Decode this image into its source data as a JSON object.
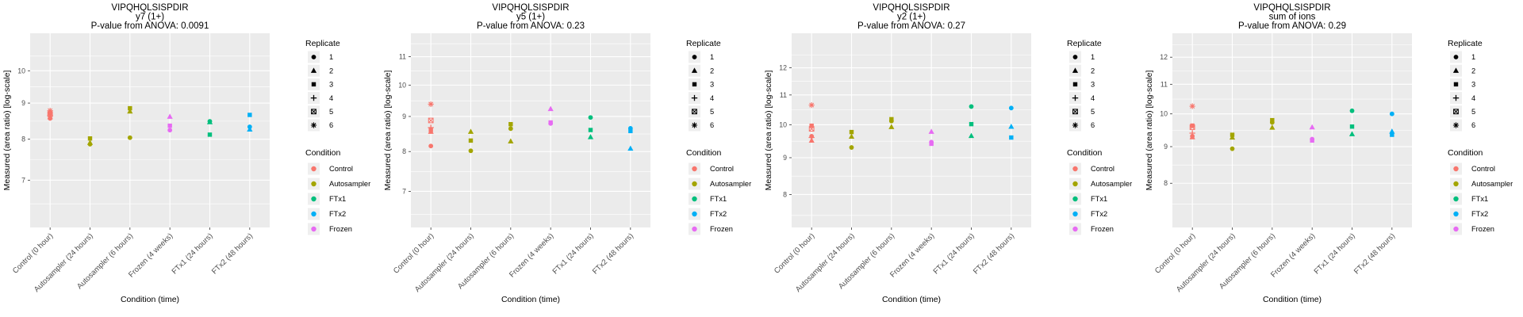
{
  "page": {
    "peptide": "VIPQHQLSISPDIR",
    "description": "Four faceted scatter plots of measured area ratio (log scale) by condition, one per ion fragment"
  },
  "colors": {
    "panel_background": "#EBEBEB",
    "gridline": "#FFFFFF",
    "tick_label": "#4D4D4D",
    "axis_text": "#000000",
    "legend_key_background": "#EFEFEF",
    "conditions": {
      "Control": "#F8766D",
      "Autosampler": "#A3A500",
      "FTx1": "#00BF7D",
      "FTx2": "#00B0F6",
      "Frozen": "#E76BF3"
    }
  },
  "x_categories": [
    "Control (0 hour)",
    "Autosampler (24 hours)",
    "Autosampler (6 hours)",
    "Frozen (4 weeks)",
    "FTx1 (24 hours)",
    "FTx2 (48 hours)"
  ],
  "category_condition": [
    "Control",
    "Autosampler",
    "Autosampler",
    "Frozen",
    "FTx1",
    "FTx2"
  ],
  "replicate_legend": {
    "title": "Replicate",
    "items": [
      {
        "label": "1",
        "shape": "circle"
      },
      {
        "label": "2",
        "shape": "triangle"
      },
      {
        "label": "3",
        "shape": "square"
      },
      {
        "label": "4",
        "shape": "plus"
      },
      {
        "label": "5",
        "shape": "square-x"
      },
      {
        "label": "6",
        "shape": "asterisk"
      }
    ]
  },
  "condition_legend": {
    "title": "Condition",
    "items": [
      {
        "label": "Control",
        "condition": "Control"
      },
      {
        "label": "Autosampler",
        "condition": "Autosampler"
      },
      {
        "label": "FTx1",
        "condition": "FTx1"
      },
      {
        "label": "FTx2",
        "condition": "FTx2"
      },
      {
        "label": "Frozen",
        "condition": "Frozen"
      }
    ]
  },
  "point_format": "points entries are {x: category index into x_categories, v: measured value, r: replicate number}",
  "chart_data": [
    {
      "type": "scatter",
      "title": "VIPQHQLSISPDIR",
      "subtitle": "y7 (1+)",
      "anova_line": "P-value from ANOVA: 0.0091",
      "p_value": "0.0091",
      "xlabel": "Condition (time)",
      "ylabel": "Measured (area ratio) [log-scale]",
      "log_scale": true,
      "legend_position": "right",
      "grid": true,
      "y_ticks": [
        7,
        8,
        9,
        10
      ],
      "ylim": [
        6.0,
        11.3
      ],
      "points": [
        {
          "x": 0,
          "v": 8.78,
          "r": 6
        },
        {
          "x": 0,
          "v": 8.72,
          "r": 3
        },
        {
          "x": 0,
          "v": 8.68,
          "r": 5
        },
        {
          "x": 0,
          "v": 8.64,
          "r": 4
        },
        {
          "x": 0,
          "v": 8.6,
          "r": 2
        },
        {
          "x": 0,
          "v": 8.56,
          "r": 1
        },
        {
          "x": 1,
          "v": 8.02,
          "r": 3
        },
        {
          "x": 1,
          "v": 7.91,
          "r": 2
        },
        {
          "x": 1,
          "v": 7.87,
          "r": 1
        },
        {
          "x": 2,
          "v": 8.85,
          "r": 3
        },
        {
          "x": 2,
          "v": 8.76,
          "r": 2
        },
        {
          "x": 2,
          "v": 8.04,
          "r": 1
        },
        {
          "x": 3,
          "v": 8.61,
          "r": 2
        },
        {
          "x": 3,
          "v": 8.36,
          "r": 3
        },
        {
          "x": 3,
          "v": 8.24,
          "r": 1
        },
        {
          "x": 4,
          "v": 8.48,
          "r": 1
        },
        {
          "x": 4,
          "v": 8.46,
          "r": 2
        },
        {
          "x": 4,
          "v": 8.12,
          "r": 3
        },
        {
          "x": 5,
          "v": 8.66,
          "r": 3
        },
        {
          "x": 5,
          "v": 8.33,
          "r": 1
        },
        {
          "x": 5,
          "v": 8.26,
          "r": 2
        }
      ]
    },
    {
      "type": "scatter",
      "title": "VIPQHQLSISPDIR",
      "subtitle": "y5 (1+)",
      "anova_line": "P-value from ANOVA: 0.23",
      "p_value": "0.23",
      "xlabel": "Condition (time)",
      "ylabel": "Measured (area ratio) [log-scale]",
      "log_scale": true,
      "legend_position": "right",
      "grid": true,
      "y_ticks": [
        7,
        8,
        9,
        10,
        11
      ],
      "ylim": [
        6.2,
        11.9
      ],
      "points": [
        {
          "x": 0,
          "v": 9.38,
          "r": 6
        },
        {
          "x": 0,
          "v": 8.88,
          "r": 5
        },
        {
          "x": 0,
          "v": 8.67,
          "r": 4
        },
        {
          "x": 0,
          "v": 8.6,
          "r": 3
        },
        {
          "x": 0,
          "v": 8.55,
          "r": 2
        },
        {
          "x": 0,
          "v": 8.15,
          "r": 1
        },
        {
          "x": 1,
          "v": 8.55,
          "r": 2
        },
        {
          "x": 1,
          "v": 8.3,
          "r": 3
        },
        {
          "x": 1,
          "v": 8.02,
          "r": 1
        },
        {
          "x": 2,
          "v": 8.77,
          "r": 3
        },
        {
          "x": 2,
          "v": 8.64,
          "r": 1
        },
        {
          "x": 2,
          "v": 8.28,
          "r": 2
        },
        {
          "x": 3,
          "v": 9.23,
          "r": 2
        },
        {
          "x": 3,
          "v": 8.82,
          "r": 3
        },
        {
          "x": 3,
          "v": 8.79,
          "r": 1
        },
        {
          "x": 4,
          "v": 8.97,
          "r": 1
        },
        {
          "x": 4,
          "v": 8.6,
          "r": 3
        },
        {
          "x": 4,
          "v": 8.4,
          "r": 2
        },
        {
          "x": 5,
          "v": 8.65,
          "r": 1
        },
        {
          "x": 5,
          "v": 8.57,
          "r": 3
        },
        {
          "x": 5,
          "v": 8.08,
          "r": 2
        }
      ]
    },
    {
      "type": "scatter",
      "title": "VIPQHQLSISPDIR",
      "subtitle": "y2 (1+)",
      "anova_line": "P-value from ANOVA: 0.27",
      "p_value": "0.27",
      "xlabel": "Condition (time)",
      "ylabel": "Measured (area ratio) [log-scale]",
      "log_scale": true,
      "legend_position": "right",
      "grid": true,
      "y_ticks": [
        8,
        9,
        10,
        11,
        12
      ],
      "ylim": [
        7.2,
        13.4
      ],
      "points": [
        {
          "x": 0,
          "v": 10.65,
          "r": 6
        },
        {
          "x": 0,
          "v": 9.97,
          "r": 3
        },
        {
          "x": 0,
          "v": 9.87,
          "r": 5
        },
        {
          "x": 0,
          "v": 9.64,
          "r": 1
        },
        {
          "x": 0,
          "v": 9.6,
          "r": 4
        },
        {
          "x": 0,
          "v": 9.51,
          "r": 2
        },
        {
          "x": 1,
          "v": 9.77,
          "r": 3
        },
        {
          "x": 1,
          "v": 9.63,
          "r": 2
        },
        {
          "x": 1,
          "v": 9.3,
          "r": 1
        },
        {
          "x": 2,
          "v": 10.18,
          "r": 3
        },
        {
          "x": 2,
          "v": 10.12,
          "r": 1
        },
        {
          "x": 2,
          "v": 9.93,
          "r": 2
        },
        {
          "x": 3,
          "v": 9.78,
          "r": 2
        },
        {
          "x": 3,
          "v": 9.46,
          "r": 1
        },
        {
          "x": 3,
          "v": 9.41,
          "r": 3
        },
        {
          "x": 4,
          "v": 10.6,
          "r": 1
        },
        {
          "x": 4,
          "v": 10.02,
          "r": 3
        },
        {
          "x": 4,
          "v": 9.65,
          "r": 2
        },
        {
          "x": 5,
          "v": 10.55,
          "r": 1
        },
        {
          "x": 5,
          "v": 9.94,
          "r": 2
        },
        {
          "x": 5,
          "v": 9.6,
          "r": 3
        }
      ]
    },
    {
      "type": "scatter",
      "title": "VIPQHQLSISPDIR",
      "subtitle": "sum of ions",
      "anova_line": "P-value from ANOVA: 0.29",
      "p_value": "0.29",
      "xlabel": "Condition (time)",
      "ylabel": "Measured (area ratio) [log-scale]",
      "log_scale": true,
      "legend_position": "right",
      "grid": true,
      "y_ticks": [
        8,
        9,
        10,
        11,
        12
      ],
      "ylim": [
        6.94,
        12.96
      ],
      "points": [
        {
          "x": 0,
          "v": 10.25,
          "r": 6
        },
        {
          "x": 0,
          "v": 9.63,
          "r": 3
        },
        {
          "x": 0,
          "v": 9.58,
          "r": 5
        },
        {
          "x": 0,
          "v": 9.4,
          "r": 4
        },
        {
          "x": 0,
          "v": 9.31,
          "r": 1
        },
        {
          "x": 0,
          "v": 9.28,
          "r": 2
        },
        {
          "x": 1,
          "v": 9.35,
          "r": 3
        },
        {
          "x": 1,
          "v": 9.27,
          "r": 2
        },
        {
          "x": 1,
          "v": 8.94,
          "r": 1
        },
        {
          "x": 2,
          "v": 9.8,
          "r": 3
        },
        {
          "x": 2,
          "v": 9.73,
          "r": 1
        },
        {
          "x": 2,
          "v": 9.57,
          "r": 2
        },
        {
          "x": 3,
          "v": 9.58,
          "r": 2
        },
        {
          "x": 3,
          "v": 9.22,
          "r": 1
        },
        {
          "x": 3,
          "v": 9.18,
          "r": 3
        },
        {
          "x": 4,
          "v": 10.1,
          "r": 1
        },
        {
          "x": 4,
          "v": 9.6,
          "r": 3
        },
        {
          "x": 4,
          "v": 9.37,
          "r": 2
        },
        {
          "x": 5,
          "v": 10.0,
          "r": 1
        },
        {
          "x": 5,
          "v": 9.45,
          "r": 2
        },
        {
          "x": 5,
          "v": 9.35,
          "r": 3
        }
      ]
    }
  ]
}
